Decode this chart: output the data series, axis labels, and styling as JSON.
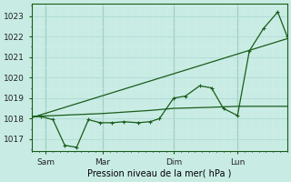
{
  "xlabel": "Pression niveau de la mer( hPa )",
  "bg_color": "#c8ece4",
  "line_color": "#1a5c1a",
  "grid_major_color": "#b0dbd6",
  "grid_minor_color": "#d0eeea",
  "ylim": [
    1016.4,
    1023.6
  ],
  "yticks": [
    1017,
    1018,
    1019,
    1020,
    1021,
    1022,
    1023
  ],
  "xlim": [
    0,
    216
  ],
  "xtick_labels": [
    "Sam",
    "Mar",
    "Dim",
    "Lun"
  ],
  "xtick_positions": [
    12,
    60,
    120,
    174
  ],
  "vline_positions": [
    12,
    60,
    120,
    174
  ],
  "line1_zigzag": {
    "x": [
      0,
      8,
      18,
      28,
      38,
      48,
      58,
      68,
      78,
      90,
      100,
      108,
      120,
      130,
      142,
      152,
      162,
      174,
      184,
      196,
      208,
      216
    ],
    "y": [
      1018.1,
      1018.1,
      1017.95,
      1016.7,
      1016.6,
      1017.95,
      1017.8,
      1017.8,
      1017.85,
      1017.8,
      1017.85,
      1018.0,
      1019.0,
      1019.1,
      1019.6,
      1019.5,
      1018.5,
      1018.15,
      1021.3,
      1022.4,
      1023.2,
      1022.0
    ]
  },
  "line2_trend": {
    "x": [
      0,
      216
    ],
    "y": [
      1018.05,
      1021.9
    ]
  },
  "line3_flat": {
    "x": [
      0,
      60,
      100,
      120,
      150,
      174,
      216
    ],
    "y": [
      1018.1,
      1018.25,
      1018.4,
      1018.5,
      1018.55,
      1018.6,
      1018.6
    ]
  }
}
